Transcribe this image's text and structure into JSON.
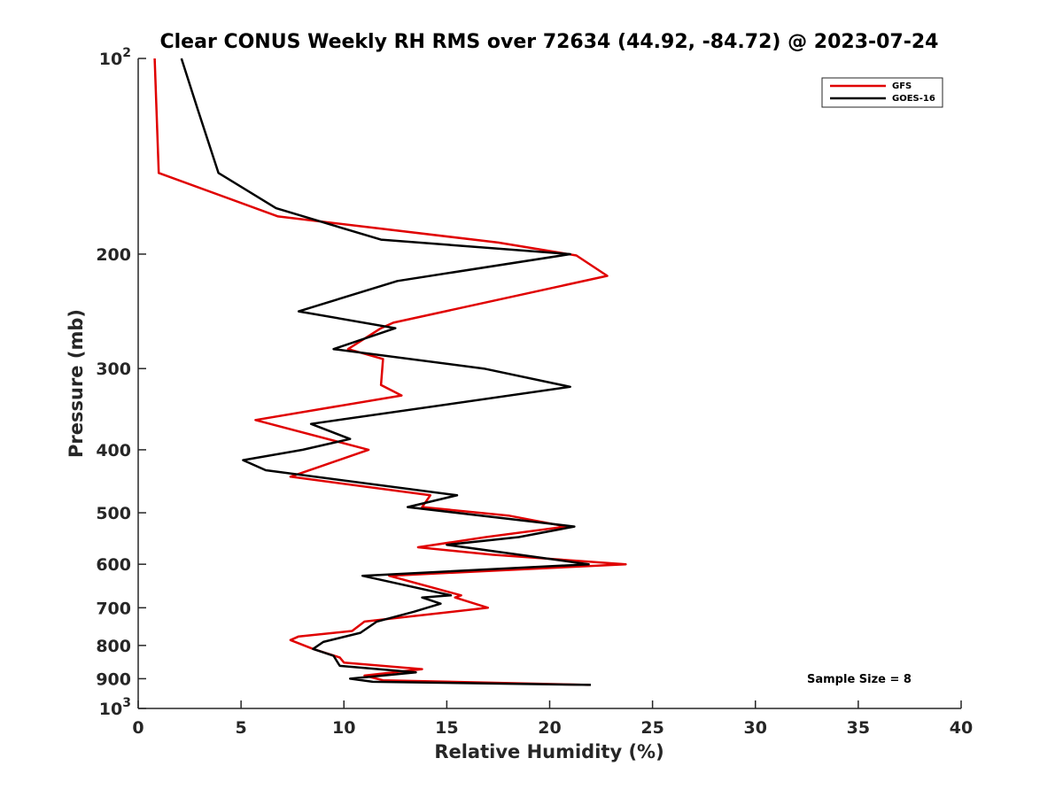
{
  "chart_data": {
    "type": "line",
    "title": "Clear CONUS Weekly RH RMS over 72634 (44.92, -84.72) @ 2023-07-24",
    "xlabel": "Relative Humidity (%)",
    "ylabel": "Pressure (mb)",
    "xlim": [
      0,
      40
    ],
    "ylim": [
      100,
      1000
    ],
    "yscale": "log",
    "y_reversed": true,
    "xticks": [
      "0",
      "5",
      "10",
      "15",
      "20",
      "25",
      "30",
      "35",
      "40"
    ],
    "xtick_values": [
      0,
      5,
      10,
      15,
      20,
      25,
      30,
      35,
      40
    ],
    "yticks": [
      {
        "value": 100,
        "base": "10",
        "exp": "2"
      },
      {
        "value": 200,
        "label": "200"
      },
      {
        "value": 300,
        "label": "300"
      },
      {
        "value": 400,
        "label": "400"
      },
      {
        "value": 500,
        "label": "500"
      },
      {
        "value": 600,
        "label": "600"
      },
      {
        "value": 700,
        "label": "700"
      },
      {
        "value": 800,
        "label": "800"
      },
      {
        "value": 900,
        "label": "900"
      },
      {
        "value": 1000,
        "base": "10",
        "exp": "3"
      }
    ],
    "legend_position": "top-right",
    "annotation": "Sample Size = 8",
    "series": [
      {
        "name": "GFS",
        "color": "#e00000",
        "points": [
          [
            0.8,
            100
          ],
          [
            1.0,
            150
          ],
          [
            6.8,
            175
          ],
          [
            17.5,
            192
          ],
          [
            21.3,
            201
          ],
          [
            22.8,
            216
          ],
          [
            12.4,
            255
          ],
          [
            11.8,
            260
          ],
          [
            10.2,
            280
          ],
          [
            11.9,
            290
          ],
          [
            11.8,
            318
          ],
          [
            12.8,
            330
          ],
          [
            5.7,
            360
          ],
          [
            11.2,
            400
          ],
          [
            8.8,
            425
          ],
          [
            7.4,
            440
          ],
          [
            14.2,
            470
          ],
          [
            13.8,
            490
          ],
          [
            18.0,
            505
          ],
          [
            20.8,
            525
          ],
          [
            16.9,
            545
          ],
          [
            13.6,
            565
          ],
          [
            17.2,
            580
          ],
          [
            23.7,
            600
          ],
          [
            12.2,
            625
          ],
          [
            15.7,
            670
          ],
          [
            15.4,
            675
          ],
          [
            17.0,
            700
          ],
          [
            11.0,
            735
          ],
          [
            10.4,
            760
          ],
          [
            7.8,
            775
          ],
          [
            7.4,
            785
          ],
          [
            8.5,
            810
          ],
          [
            9.8,
            835
          ],
          [
            10.0,
            850
          ],
          [
            13.8,
            870
          ],
          [
            11.0,
            890
          ],
          [
            11.9,
            905
          ],
          [
            21.9,
            920
          ]
        ]
      },
      {
        "name": "GOES-16",
        "color": "#000000",
        "points": [
          [
            2.1,
            100
          ],
          [
            2.9,
            120
          ],
          [
            3.9,
            150
          ],
          [
            6.7,
            170
          ],
          [
            11.8,
            190
          ],
          [
            21.0,
            200
          ],
          [
            12.6,
            220
          ],
          [
            7.8,
            245
          ],
          [
            12.5,
            260
          ],
          [
            9.5,
            280
          ],
          [
            16.8,
            300
          ],
          [
            21.0,
            320
          ],
          [
            8.4,
            365
          ],
          [
            10.3,
            385
          ],
          [
            8.0,
            400
          ],
          [
            5.1,
            415
          ],
          [
            6.2,
            430
          ],
          [
            15.5,
            470
          ],
          [
            13.1,
            490
          ],
          [
            21.2,
            525
          ],
          [
            18.5,
            545
          ],
          [
            15.0,
            560
          ],
          [
            21.9,
            600
          ],
          [
            10.9,
            625
          ],
          [
            15.2,
            670
          ],
          [
            13.8,
            675
          ],
          [
            14.7,
            690
          ],
          [
            13.4,
            710
          ],
          [
            11.6,
            735
          ],
          [
            10.8,
            765
          ],
          [
            9.0,
            790
          ],
          [
            8.5,
            810
          ],
          [
            9.5,
            830
          ],
          [
            9.8,
            860
          ],
          [
            13.5,
            880
          ],
          [
            10.3,
            900
          ],
          [
            11.4,
            910
          ],
          [
            22.0,
            920
          ]
        ]
      }
    ]
  }
}
